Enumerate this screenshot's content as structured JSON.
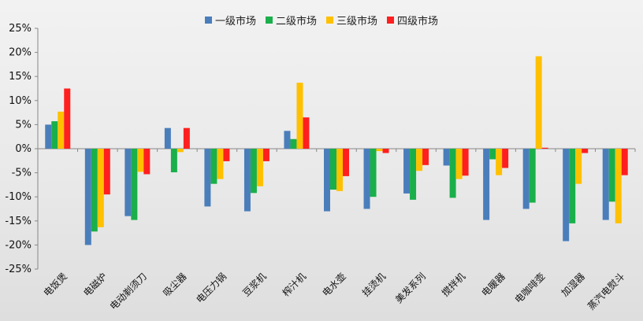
{
  "chart_data": {
    "type": "bar",
    "title": "",
    "xlabel": "",
    "ylabel": "",
    "ylim": [
      -0.25,
      0.25
    ],
    "yticks": [
      "25%",
      "20%",
      "15%",
      "10%",
      "5%",
      "0%",
      "-5%",
      "-10%",
      "-15%",
      "-20%",
      "-25%"
    ],
    "legend_position": "top-center",
    "categories": [
      "电饭煲",
      "电磁炉",
      "电动剃须刀",
      "吸尘器",
      "电压力锅",
      "豆浆机",
      "榨汁机",
      "电水壶",
      "挂烫机",
      "美发系列",
      "搅拌机",
      "电暖器",
      "电咖啡壶",
      "加湿器",
      "蒸汽电熨斗"
    ],
    "series": [
      {
        "name": "一级市场",
        "color": "#4a7ebb",
        "values": [
          0.05,
          -0.2,
          -0.14,
          0.043,
          -0.12,
          -0.13,
          0.037,
          -0.13,
          -0.125,
          -0.093,
          -0.035,
          -0.148,
          -0.125,
          -0.192,
          -0.148
        ]
      },
      {
        "name": "二级市场",
        "color": "#1aaf4b",
        "values": [
          0.057,
          -0.172,
          -0.148,
          -0.049,
          -0.073,
          -0.092,
          0.02,
          -0.085,
          -0.1,
          -0.106,
          -0.102,
          -0.022,
          -0.112,
          -0.155,
          -0.11
        ]
      },
      {
        "name": "三级市场",
        "color": "#ffc000",
        "values": [
          0.077,
          -0.163,
          -0.048,
          -0.007,
          -0.063,
          -0.078,
          0.137,
          -0.088,
          -0.005,
          -0.046,
          -0.063,
          -0.055,
          0.192,
          -0.073,
          -0.155
        ]
      },
      {
        "name": "四级市场",
        "color": "#ff1f1f",
        "values": [
          0.125,
          -0.095,
          -0.053,
          0.043,
          -0.026,
          -0.026,
          0.065,
          -0.057,
          -0.009,
          -0.034,
          -0.056,
          -0.04,
          0.002,
          -0.009,
          -0.055
        ]
      }
    ]
  }
}
